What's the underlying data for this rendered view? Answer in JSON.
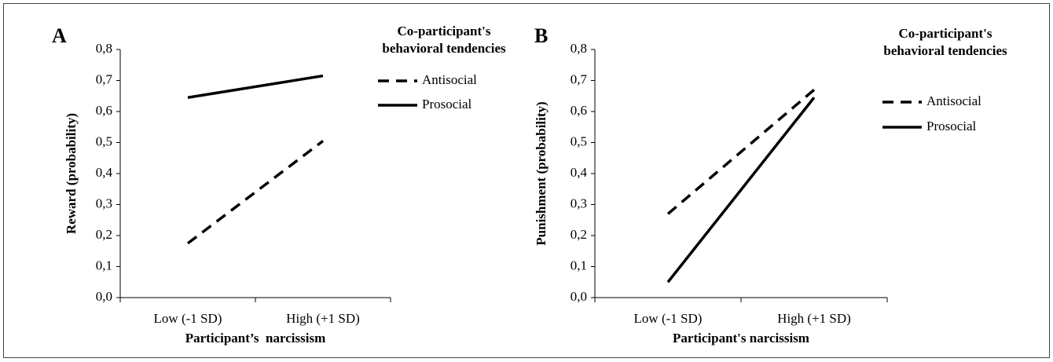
{
  "chart_data": [
    {
      "type": "line",
      "panel": "A",
      "categories": [
        "Low (-1 SD)",
        "High (+1 SD)"
      ],
      "series": [
        {
          "name": "Antisocial",
          "color": "#000000",
          "style": "dashed",
          "values": [
            0.175,
            0.505
          ]
        },
        {
          "name": "Prosocial",
          "color": "#000000",
          "style": "solid",
          "values": [
            0.645,
            0.715
          ]
        }
      ],
      "ylim": [
        0,
        0.8
      ],
      "yticks": [
        {
          "value": 0,
          "label": "0,0"
        },
        {
          "value": 0.1,
          "label": "0,1"
        },
        {
          "value": 0.2,
          "label": "0,2"
        },
        {
          "value": 0.3,
          "label": "0,3"
        },
        {
          "value": 0.4,
          "label": "0,4"
        },
        {
          "value": 0.5,
          "label": "0,5"
        },
        {
          "value": 0.6,
          "label": "0,6"
        },
        {
          "value": 0.7,
          "label": "0,7"
        },
        {
          "value": 0.8,
          "label": "0,8"
        }
      ],
      "y_label": "Reward (probability)",
      "x_label": "Participant’s  narcissism",
      "legend_title": [
        "Co-participant's",
        "behavioral tendencies"
      ]
    },
    {
      "type": "line",
      "panel": "B",
      "categories": [
        "Low (-1 SD)",
        "High (+1 SD)"
      ],
      "series": [
        {
          "name": "Antisocial",
          "color": "#000000",
          "style": "dashed",
          "values": [
            0.27,
            0.67
          ]
        },
        {
          "name": "Prosocial",
          "color": "#000000",
          "style": "solid",
          "values": [
            0.05,
            0.645
          ]
        }
      ],
      "ylim": [
        0,
        0.8
      ],
      "yticks": [
        {
          "value": 0,
          "label": "0,0"
        },
        {
          "value": 0.1,
          "label": "0,1"
        },
        {
          "value": 0.2,
          "label": "0,2"
        },
        {
          "value": 0.3,
          "label": "0,3"
        },
        {
          "value": 0.4,
          "label": "0,4"
        },
        {
          "value": 0.5,
          "label": "0,5"
        },
        {
          "value": 0.6,
          "label": "0,6"
        },
        {
          "value": 0.7,
          "label": "0,7"
        },
        {
          "value": 0.8,
          "label": "0,8"
        }
      ],
      "y_label": "Punishment (probability)",
      "x_label": "Participant's narcissism",
      "legend_title": [
        "Co-participant's",
        "behavioral tendencies"
      ]
    }
  ]
}
